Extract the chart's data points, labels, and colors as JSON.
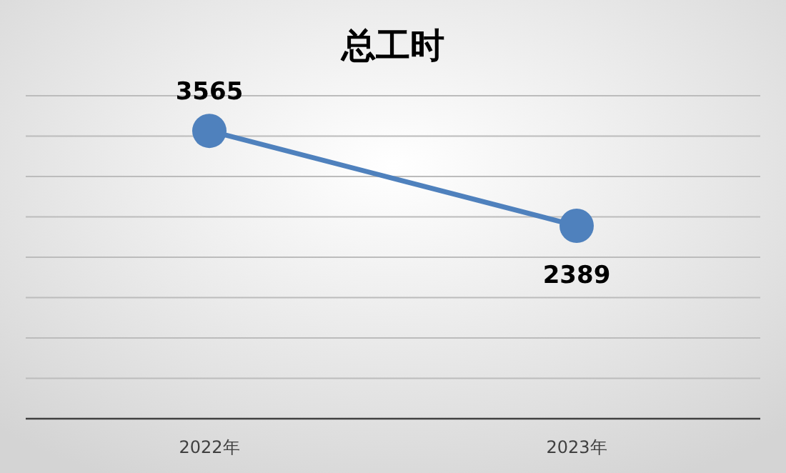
{
  "chart_data": {
    "type": "line",
    "title": "总工时",
    "categories": [
      "2022年",
      "2023年"
    ],
    "series": [
      {
        "color": "#4f81bd",
        "values": [
          3565,
          2389
        ]
      }
    ],
    "ylim": [
      0,
      4000
    ],
    "yticks": [
      {
        "value": 0,
        "label": null
      },
      {
        "value": 500,
        "label": null
      },
      {
        "value": 1000,
        "label": null
      },
      {
        "value": 1500,
        "label": null
      },
      {
        "value": 2000,
        "label": null
      },
      {
        "value": 2500,
        "label": null
      },
      {
        "value": 3000,
        "label": null
      },
      {
        "value": 3500,
        "label": null
      },
      {
        "value": 4000,
        "label": null
      }
    ],
    "grid": "y",
    "tick_labels": "x",
    "marker": "circle",
    "line_style": "solid",
    "data_labels": true
  }
}
